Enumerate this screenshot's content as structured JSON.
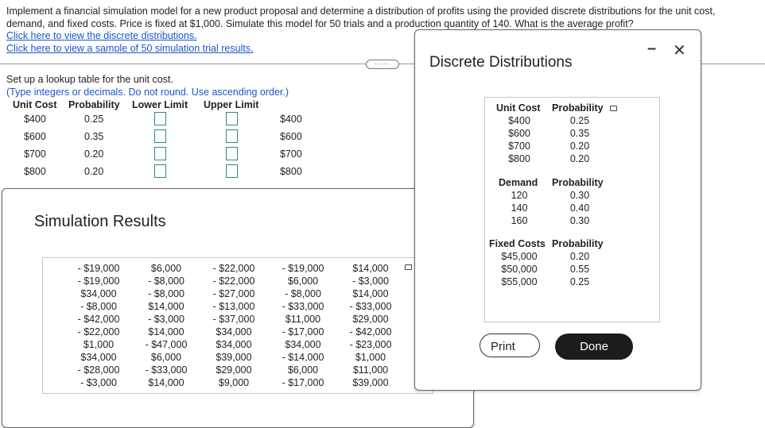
{
  "question": {
    "text": "Implement a financial simulation model for a new product proposal and determine a distribution of profits using the provided discrete distributions for the unit cost, demand, and fixed costs. Price is fixed at $1,000. Simulate this model for 50 trials and a production quantity of 140. What is the average profit?",
    "link_distributions": "Click here to view the discrete distributions.",
    "link_results": "Click here to view a sample of 50 simulation trial results."
  },
  "lookup": {
    "instruction": "Set up a lookup table for the unit cost.",
    "hint": "(Type integers or decimals. Do not round. Use ascending order.)",
    "headers": [
      "Unit Cost",
      "Probability",
      "Lower Limit",
      "Upper Limit"
    ],
    "rows": [
      {
        "cost": "$400",
        "prob": "0.25",
        "value": "$400"
      },
      {
        "cost": "$600",
        "prob": "0.35",
        "value": "$600"
      },
      {
        "cost": "$700",
        "prob": "0.20",
        "value": "$700"
      },
      {
        "cost": "$800",
        "prob": "0.20",
        "value": "$800"
      }
    ]
  },
  "simulation": {
    "title": "Simulation Results",
    "columns": [
      [
        "- $19,000",
        "- $19,000",
        "$34,000",
        "- $8,000",
        "- $42,000",
        "- $22,000",
        "$1,000",
        "$34,000",
        "- $28,000",
        "- $3,000"
      ],
      [
        "$6,000",
        "- $8,000",
        "- $8,000",
        "$14,000",
        "- $3,000",
        "$14,000",
        "- $47,000",
        "$6,000",
        "- $33,000",
        "$14,000"
      ],
      [
        "- $22,000",
        "- $22,000",
        "- $27,000",
        "- $13,000",
        "- $37,000",
        "$34,000",
        "$34,000",
        "$39,000",
        "$29,000",
        "$9,000"
      ],
      [
        "- $19,000",
        "$6,000",
        "- $8,000",
        "- $33,000",
        "$11,000",
        "- $17,000",
        "$34,000",
        "- $14,000",
        "$6,000",
        "- $17,000"
      ],
      [
        "$14,000",
        "- $3,000",
        "$14,000",
        "- $33,000",
        "$29,000",
        "- $42,000",
        "- $23,000",
        "$1,000",
        "$11,000",
        "$39,000"
      ]
    ]
  },
  "distributions": {
    "title": "Discrete Distributions",
    "unit_cost": {
      "h1": "Unit Cost",
      "h2": "Probability",
      "values": [
        "$400",
        "$600",
        "$700",
        "$800"
      ],
      "probs": [
        "0.25",
        "0.35",
        "0.20",
        "0.20"
      ]
    },
    "demand": {
      "h1": "Demand",
      "h2": "Probability",
      "values": [
        "120",
        "140",
        "160"
      ],
      "probs": [
        "0.30",
        "0.40",
        "0.30"
      ]
    },
    "fixed_costs": {
      "h1": "Fixed Costs",
      "h2": "Probability",
      "values": [
        "$45,000",
        "$50,000",
        "$55,000"
      ],
      "probs": [
        "0.20",
        "0.55",
        "0.25"
      ]
    },
    "print_label": "Print",
    "done_label": "Done"
  },
  "icons": {
    "minimize": "minimize-icon",
    "close": "close-icon",
    "copy": "copy-icon"
  }
}
